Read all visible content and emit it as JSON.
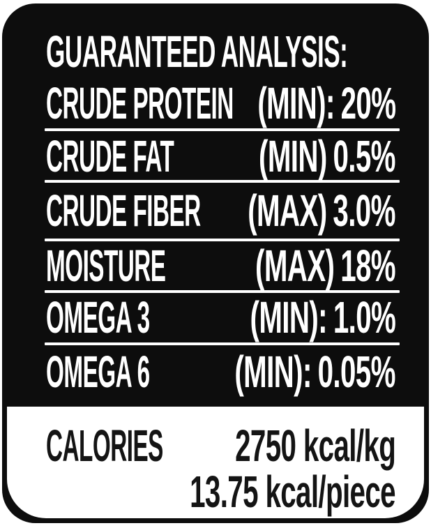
{
  "colors": {
    "label_background": "#0d0d0d",
    "label_text": "#ffffff",
    "panel_background": "#ffffff",
    "panel_text": "#141414"
  },
  "header": {
    "title": "GUARANTEED ANALYSIS:"
  },
  "analysis_rows": [
    {
      "name": "CRUDE PROTEIN",
      "qualifier": "(MIN):",
      "value": "20%"
    },
    {
      "name": "CRUDE FAT",
      "qualifier": "(MIN)",
      "value": "0.5%"
    },
    {
      "name": "CRUDE FIBER",
      "qualifier": "(MAX)",
      "value": "3.0%"
    },
    {
      "name": "MOISTURE",
      "qualifier": "(MAX)",
      "value": "18%"
    },
    {
      "name": "OMEGA 3",
      "qualifier": "(MIN):",
      "value": "1.0%"
    },
    {
      "name": "OMEGA 6",
      "qualifier": "(MIN):",
      "value": "0.05%"
    }
  ],
  "calories": {
    "label": "CALORIES",
    "per_kg": "2750 kcal/kg",
    "per_piece": "13.75 kcal/piece"
  }
}
